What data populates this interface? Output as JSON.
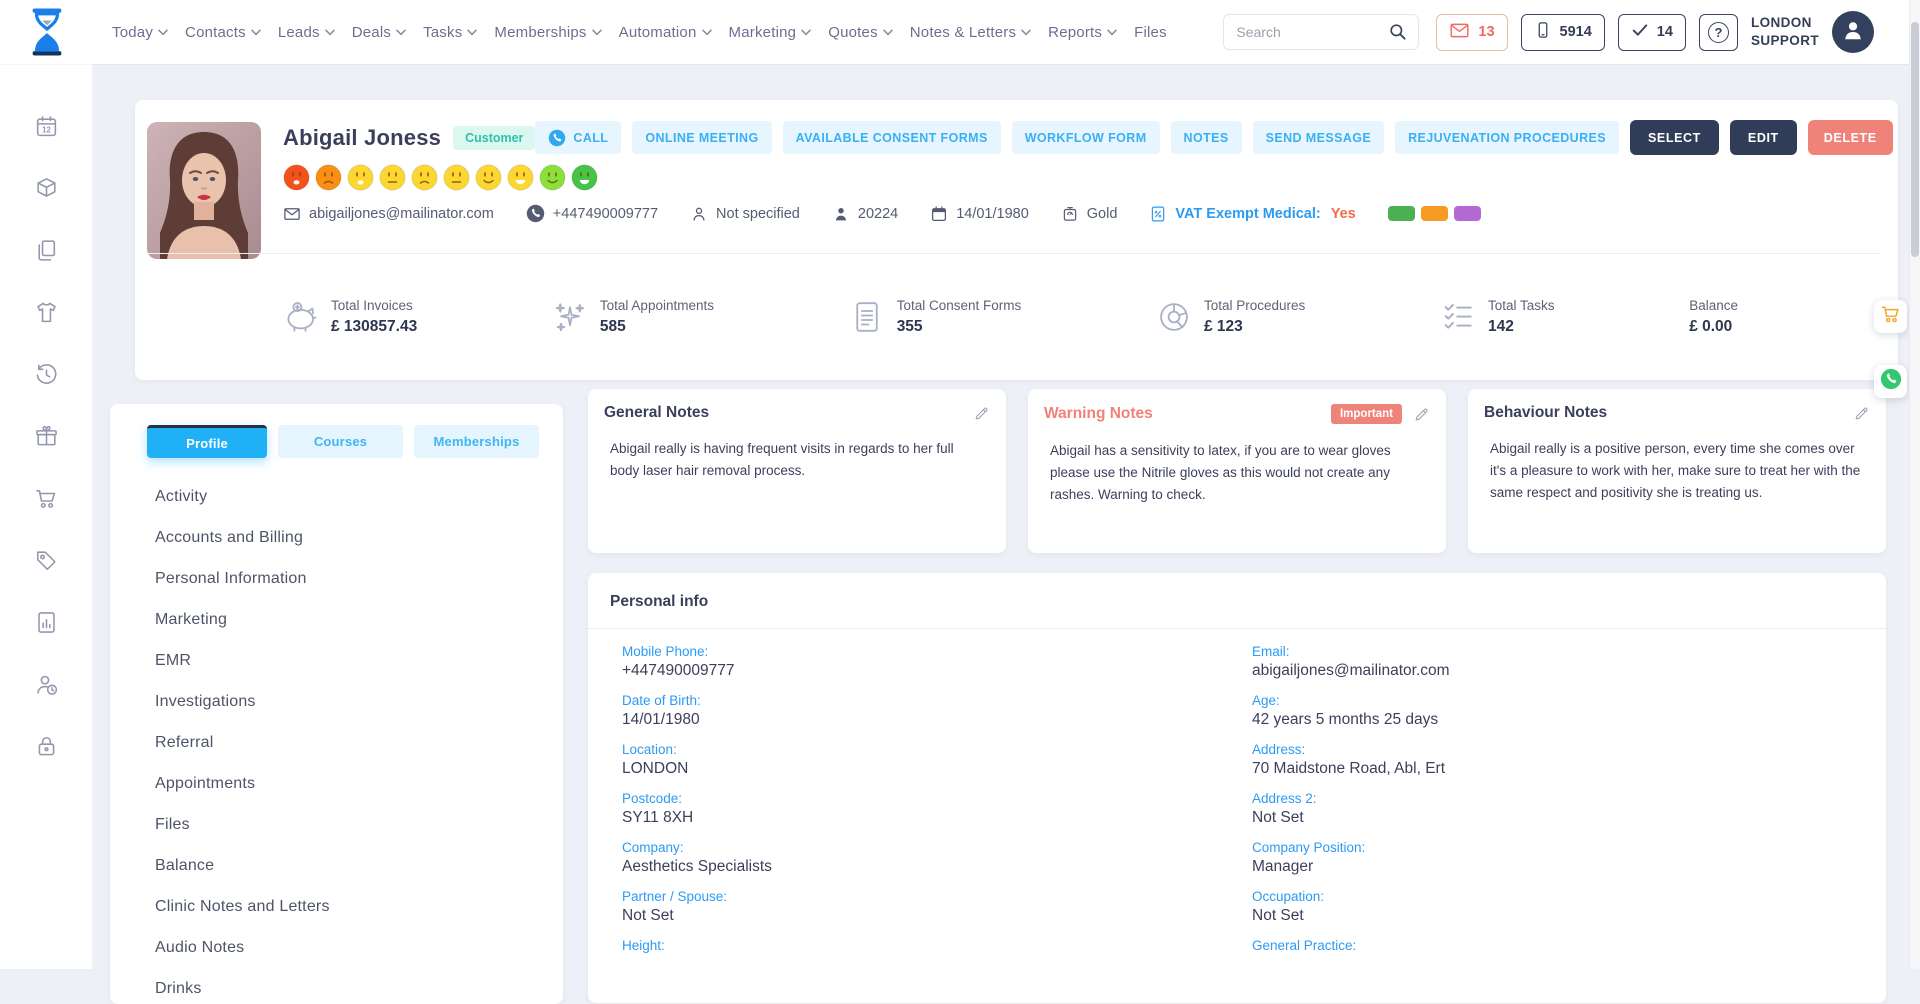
{
  "header": {
    "nav": [
      {
        "label": "Today",
        "chevron": true
      },
      {
        "label": "Contacts",
        "chevron": true
      },
      {
        "label": "Leads",
        "chevron": true
      },
      {
        "label": "Deals",
        "chevron": true
      },
      {
        "label": "Tasks",
        "chevron": true
      },
      {
        "label": "Memberships",
        "chevron": true
      },
      {
        "label": "Automation",
        "chevron": true
      },
      {
        "label": "Marketing",
        "chevron": true
      },
      {
        "label": "Quotes",
        "chevron": true
      },
      {
        "label": "Notes & Letters",
        "chevron": true
      },
      {
        "label": "Reports",
        "chevron": true
      },
      {
        "label": "Files",
        "chevron": false
      }
    ],
    "search_placeholder": "Search",
    "mail_count": "13",
    "phone_count": "5914",
    "tasks_count": "14",
    "support_line1": "LONDON",
    "support_line2": "SUPPORT"
  },
  "rail": {
    "icons": [
      "calendar12",
      "package",
      "copy",
      "apparel",
      "history",
      "gift",
      "cart",
      "tag",
      "chartfile",
      "userclock",
      "lock"
    ]
  },
  "profile": {
    "name": "Abigail Joness",
    "badge": "Customer",
    "emojis": [
      {
        "color": "#f4521c",
        "mouth": "o-frown"
      },
      {
        "color": "#fb8f13",
        "mouth": "frown"
      },
      {
        "color": "#fdd731",
        "mouth": "o-frown"
      },
      {
        "color": "#fdd731",
        "mouth": "neutral"
      },
      {
        "color": "#fdd731",
        "mouth": "frown"
      },
      {
        "color": "#fdd731",
        "mouth": "neutral"
      },
      {
        "color": "#fdd731",
        "mouth": "smile"
      },
      {
        "color": "#fdd731",
        "mouth": "grin"
      },
      {
        "color": "#8ce03c",
        "mouth": "smile"
      },
      {
        "color": "#47c447",
        "mouth": "grin"
      }
    ],
    "contact": {
      "email": "abigailjones@mailinator.com",
      "phone": "+447490009777",
      "gender": "Not specified",
      "customer_id": "20224",
      "dob": "14/01/1980",
      "tier": "Gold",
      "vat_label": "VAT Exempt Medical:",
      "vat_value": "Yes",
      "tags": [
        "#4caf50",
        "#f59a23",
        "#b569d4"
      ]
    },
    "actions_light": [
      "CALL",
      "ONLINE MEETING",
      "AVAILABLE CONSENT FORMS",
      "WORKFLOW FORM",
      "NOTES",
      "SEND MESSAGE",
      "REJUVENATION PROCEDURES"
    ],
    "actions_dark": [
      "SELECT",
      "EDIT"
    ],
    "action_delete": "DELETE",
    "stats": [
      {
        "icon": "piggy",
        "label": "Total Invoices",
        "value": "£ 130857.43"
      },
      {
        "icon": "sparkle",
        "label": "Total Appointments",
        "value": "585"
      },
      {
        "icon": "doclines",
        "label": "Total Consent Forms",
        "value": "355"
      },
      {
        "icon": "donut",
        "label": "Total Procedures",
        "value": "£ 123"
      },
      {
        "icon": "checklist",
        "label": "Total Tasks",
        "value": "142"
      },
      {
        "icon": null,
        "label": "Balance",
        "value": "£ 0.00"
      }
    ]
  },
  "sidebar": {
    "tabs": [
      {
        "label": "Profile",
        "active": true
      },
      {
        "label": "Courses",
        "active": false
      },
      {
        "label": "Memberships",
        "active": false
      }
    ],
    "items": [
      "Activity",
      "Accounts and Billing",
      "Personal Information",
      "Marketing",
      "EMR",
      "Investigations",
      "Referral",
      "Appointments",
      "Files",
      "Balance",
      "Clinic Notes and Letters",
      "Audio Notes",
      "Drinks"
    ]
  },
  "notes": [
    {
      "title": "General Notes",
      "variant": "normal",
      "badge": null,
      "body": "Abigail really is having frequent visits in regards to her full body laser hair removal process."
    },
    {
      "title": "Warning Notes",
      "variant": "warning",
      "badge": "Important",
      "body": "Abigail has a sensitivity to latex, if you are to wear gloves please use the Nitrile gloves as this would not create any rashes. Warning to check."
    },
    {
      "title": "Behaviour Notes",
      "variant": "normal",
      "badge": null,
      "body": "Abigail really is a positive person, every time she comes over it's a pleasure to work with her, make sure to treat her with the same respect and positivity she is treating us."
    }
  ],
  "personal_info": {
    "title": "Personal info",
    "left": [
      {
        "label": "Mobile Phone:",
        "value": "+447490009777"
      },
      {
        "label": "Date of Birth:",
        "value": "14/01/1980"
      },
      {
        "label": "Location:",
        "value": "LONDON"
      },
      {
        "label": "Postcode:",
        "value": "SY11 8XH"
      },
      {
        "label": "Company:",
        "value": "Aesthetics Specialists"
      },
      {
        "label": "Partner / Spouse:",
        "value": "Not Set"
      },
      {
        "label": "Height:",
        "value": ""
      }
    ],
    "right": [
      {
        "label": "Email:",
        "value": "abigailjones@mailinator.com"
      },
      {
        "label": "Age:",
        "value": "42 years 5 months 25 days"
      },
      {
        "label": "Address:",
        "value": "70 Maidstone Road, Abl, Ert"
      },
      {
        "label": "Address 2:",
        "value": "Not Set"
      },
      {
        "label": "Company Position:",
        "value": "Manager"
      },
      {
        "label": "Occupation:",
        "value": "Not Set"
      },
      {
        "label": "General Practice:",
        "value": ""
      }
    ]
  },
  "colors": {
    "accent_blue": "#3ab0f4",
    "navy": "#313d58",
    "salmon": "#ef837a",
    "teal_badge": "#2cc3a8",
    "label_blue": "#2b9bf4",
    "fab_cart": "#f5a623",
    "fab_phone": "#34c76f"
  }
}
